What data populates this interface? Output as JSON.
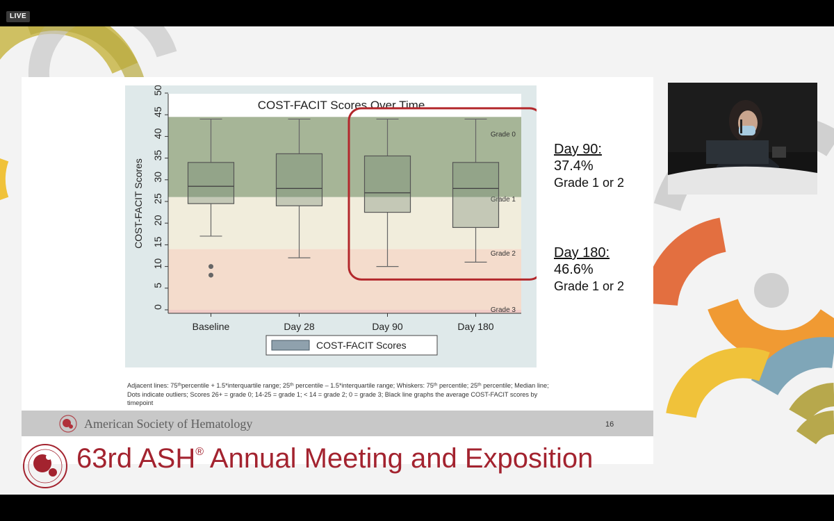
{
  "stream": {
    "badge": "LIVE"
  },
  "chart_data": {
    "type": "box",
    "title": "COST-FACIT Scores Over Time",
    "ylabel": "COST-FACIT Scores",
    "xlabel": "",
    "ylim": [
      0,
      50
    ],
    "yticks": [
      0,
      5,
      10,
      15,
      20,
      25,
      30,
      35,
      40,
      45,
      50
    ],
    "categories": [
      "Baseline",
      "Day 28",
      "Day 90",
      "Day 180"
    ],
    "series": [
      {
        "name": "COST-FACIT Scores",
        "boxes": [
          {
            "whisker_low": 17,
            "q1": 24.5,
            "median": 28.5,
            "q3": 34,
            "whisker_high": 44,
            "outliers": [
              10,
              8
            ]
          },
          {
            "whisker_low": 12,
            "q1": 24,
            "median": 28,
            "q3": 36,
            "whisker_high": 44,
            "outliers": []
          },
          {
            "whisker_low": 10,
            "q1": 22.5,
            "median": 27,
            "q3": 35.5,
            "whisker_high": 44,
            "outliers": []
          },
          {
            "whisker_low": 11,
            "q1": 19,
            "median": 28,
            "q3": 34,
            "whisker_high": 44,
            "outliers": []
          }
        ]
      }
    ],
    "bands": [
      {
        "label": "Grade 0",
        "from": 26,
        "to": 44.5,
        "color": "#9cad8c"
      },
      {
        "label": "Grade 1",
        "from": 14,
        "to": 26,
        "color": "#efebd8"
      },
      {
        "label": "Grade 2",
        "from": 0,
        "to": 14,
        "color": "#f3d8c6"
      },
      {
        "label": "Grade 3",
        "from": -1,
        "to": 0,
        "color": "#f0c6c2"
      }
    ],
    "highlight": {
      "categories": [
        "Day 90",
        "Day 180"
      ],
      "color": "#b3282c"
    },
    "legend": {
      "label": "COST-FACIT Scores",
      "position": "bottom"
    },
    "grid": false
  },
  "slide": {
    "footnote": "Adjacent lines: 75ᵗʰpercentile + 1.5*interquartile range; 25ᵗʰ percentile – 1.5*interquartile range; Whiskers: 75ᵗʰ percentile; 25ᵗʰ percentile; Median line; Dots indicate outliers; Scores 26+ = grade 0; 14-25 = grade 1; < 14 = grade 2; 0 = grade 3; Black line graphs the average COST-FACIT scores by timepoint",
    "org": "American Society of Hematology",
    "page_number": "16"
  },
  "callouts": [
    {
      "head": "Day 90:",
      "pct": "37.4%",
      "grade": "Grade 1 or 2"
    },
    {
      "head": "Day 180:",
      "pct": "46.6%",
      "grade": "Grade 1 or 2"
    }
  ],
  "banner": {
    "title_main": "63rd ASH",
    "title_reg": "®",
    "title_rest": " Annual Meeting and Exposition"
  },
  "colors": {
    "brand_red": "#a3232f",
    "box_fill": "#6f8470",
    "box_stroke": "#555555",
    "plot_bg": "#dfe9ea"
  }
}
